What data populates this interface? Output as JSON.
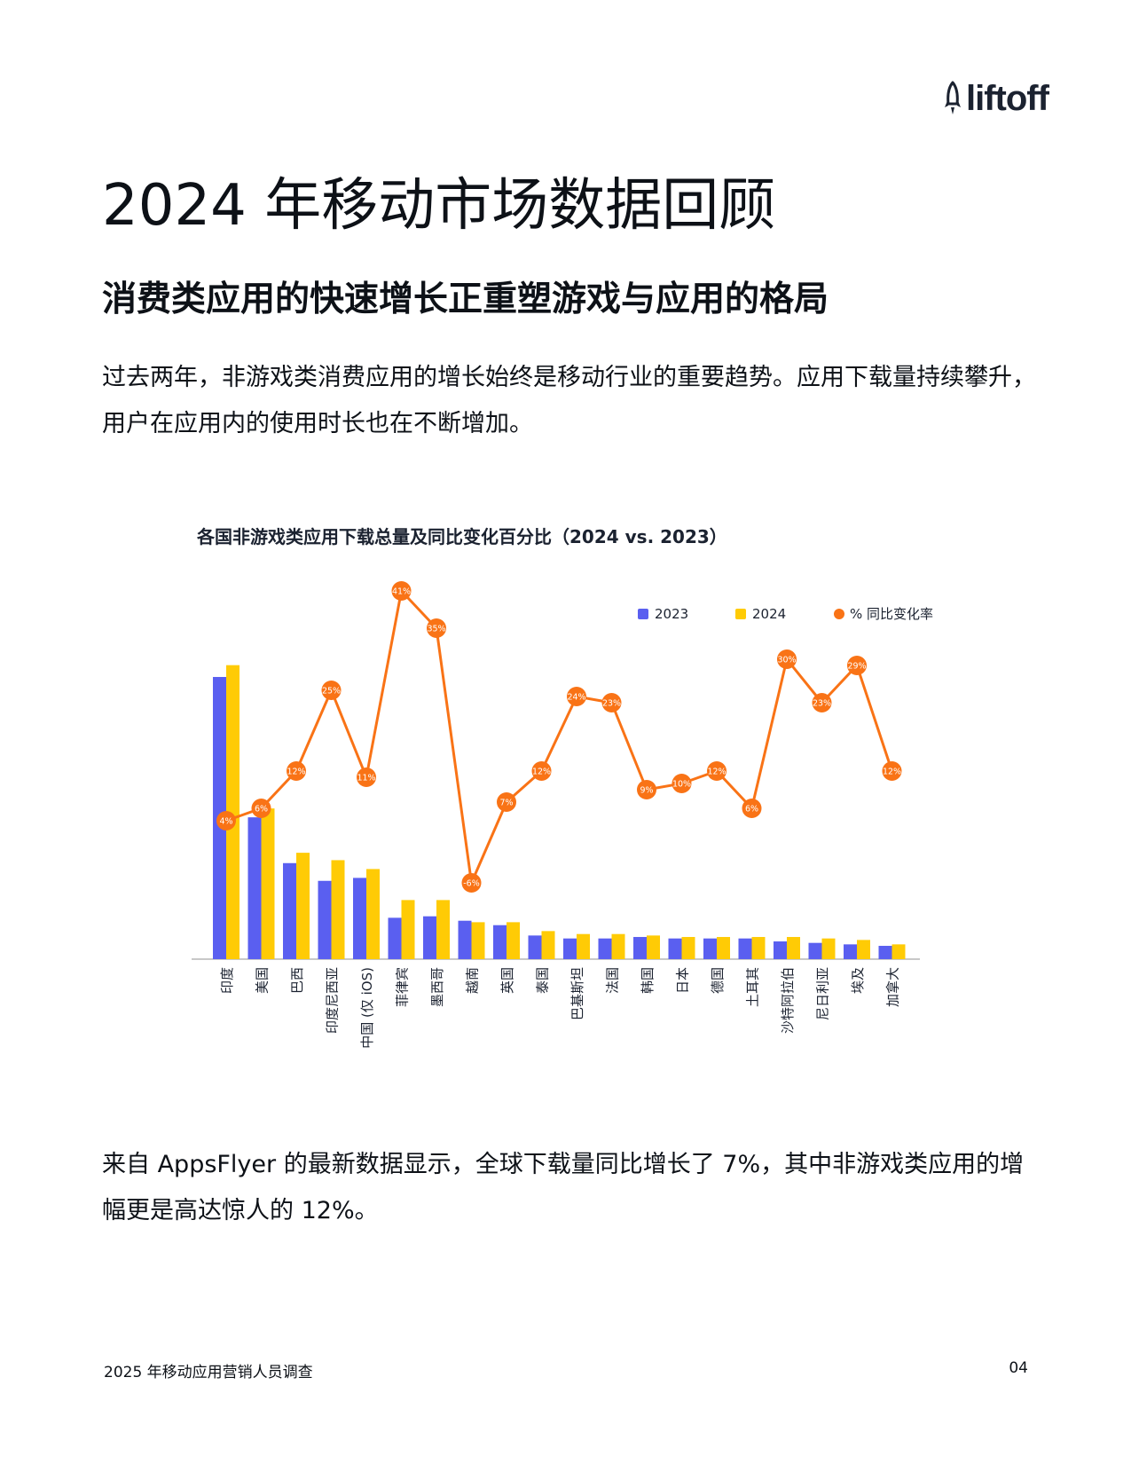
{
  "logo": {
    "text": "liftoff",
    "icon": "rocket-icon"
  },
  "title": "2024 年移动市场数据回顾",
  "subtitle": "消费类应用的快速增长正重塑游戏与应用的格局",
  "paragraph1": "过去两年，非游戏类消费应用的增长始终是移动行业的重要趋势。应用下载量持续攀升，用户在应用内的使用时长也在不断增加。",
  "paragraph2": "来自 AppsFlyer 的最新数据显示，全球下载量同比增长了 7%，其中非游戏类应用的增幅更是高达惊人的 12%。",
  "footer": {
    "text": "2025 年移动应用营销人员调查",
    "page": "04"
  },
  "colors": {
    "s2023": "#5a5ff0",
    "s2024": "#ffcb05",
    "yoy": "#f97316",
    "axis": "#c8c8c8"
  },
  "chart_data": {
    "type": "bar",
    "title": "各国非游戏类应用下载总量及同比变化百分比（2024 vs. 2023）",
    "categories": [
      "印度",
      "美国",
      "巴西",
      "印度尼西亚",
      "中国 (仅 iOS)",
      "菲律宾",
      "墨西哥",
      "越南",
      "英国",
      "泰国",
      "巴基斯坦",
      "法国",
      "韩国",
      "日本",
      "德国",
      "土耳其",
      "沙特阿拉伯",
      "尼日利亚",
      "埃及",
      "加拿大"
    ],
    "ylim": [
      0,
      100
    ],
    "legend_placement": "top-right",
    "grid": false,
    "series": [
      {
        "name": "2023",
        "values": [
          95.5,
          48,
          32.5,
          26.5,
          27.5,
          14,
          14.5,
          13,
          11.5,
          8,
          7,
          7,
          7.5,
          7,
          7,
          7,
          6,
          5.5,
          5,
          4.5
        ]
      },
      {
        "name": "2024",
        "values": [
          99.5,
          51,
          36,
          33.5,
          30.5,
          20,
          20,
          12.5,
          12.5,
          9.5,
          8.5,
          8.5,
          8,
          7.5,
          7.5,
          7.5,
          7.5,
          7,
          6.5,
          5
        ]
      },
      {
        "name": "% 同比变化率",
        "type": "line",
        "values": [
          4,
          6,
          12,
          25,
          11,
          41,
          35,
          -6,
          7,
          12,
          24,
          23,
          9,
          10,
          12,
          6,
          30,
          23,
          29,
          12
        ],
        "labels": [
          "4%",
          "6%",
          "12%",
          "25%",
          "11%",
          "41%",
          "35%",
          "-6%",
          "7%",
          "12%",
          "24%",
          "23%",
          "9%",
          "10%",
          "12%",
          "6%",
          "30%",
          "23%",
          "29%",
          "12%"
        ]
      }
    ]
  }
}
